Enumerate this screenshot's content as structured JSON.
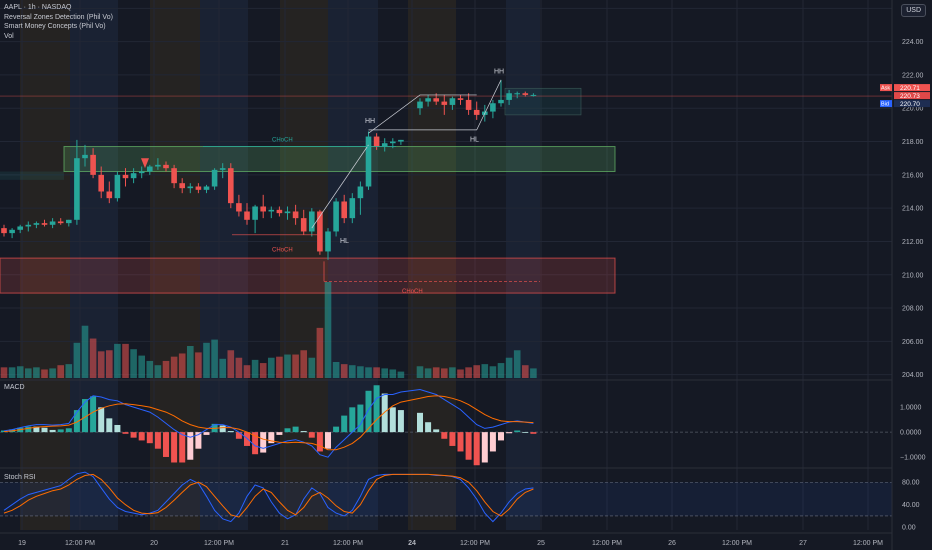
{
  "legend": {
    "symbol": "AAPL · 1h · NASDAQ",
    "indicator1": "Reversal Zones Detection (Phil Vo)",
    "indicator2": "Smart Money Concepts (Phil Vo)",
    "indicator3": "Vol"
  },
  "currency_button": "USD",
  "panes": {
    "macd": "MACD",
    "stoch": "Stoch RSI"
  },
  "colors": {
    "bg": "#151924",
    "up": "#26a69a",
    "down": "#ef5350",
    "band_orange": "#2b2722",
    "band_blue": "#1c2538",
    "supply_zone": "#ef5350",
    "demand_zone": "#66bb6a",
    "macd_line": "#2962ff",
    "signal_line": "#ff6d00"
  },
  "chart_data": [
    {
      "type": "candlestick",
      "title": "AAPL · 1h · NASDAQ",
      "x_ticks": [
        "19",
        "12:00 PM",
        "20",
        "12:00 PM",
        "21",
        "12:00 PM",
        "24",
        "12:00 PM",
        "25",
        "12:00 PM",
        "26",
        "12:00 PM",
        "27",
        "12:00 PM"
      ],
      "y_ticks": [
        "226.00",
        "224.00",
        "222.00",
        "220.00",
        "218.00",
        "216.00",
        "214.00",
        "212.00",
        "210.00",
        "208.00",
        "206.00",
        "204.00"
      ],
      "ylim": [
        203.8,
        226.5
      ],
      "ohlc": [
        [
          212.8,
          213.0,
          212.3,
          212.5
        ],
        [
          212.5,
          212.8,
          212.2,
          212.7
        ],
        [
          212.7,
          213.0,
          212.5,
          212.9
        ],
        [
          212.9,
          213.2,
          212.6,
          213.0
        ],
        [
          213.0,
          213.2,
          212.8,
          213.1
        ],
        [
          213.1,
          213.3,
          212.9,
          213.0
        ],
        [
          213.0,
          213.4,
          212.8,
          213.2
        ],
        [
          213.2,
          213.4,
          213.0,
          213.1
        ],
        [
          213.1,
          213.3,
          212.9,
          213.3
        ],
        [
          213.3,
          218.1,
          213.0,
          217.0
        ],
        [
          217.0,
          217.8,
          216.5,
          217.2
        ],
        [
          217.2,
          217.6,
          215.8,
          216.0
        ],
        [
          216.0,
          216.5,
          214.6,
          215.0
        ],
        [
          215.0,
          215.6,
          214.3,
          214.6
        ],
        [
          214.6,
          216.2,
          214.4,
          216.0
        ],
        [
          216.0,
          216.4,
          215.3,
          215.8
        ],
        [
          215.8,
          216.4,
          215.5,
          216.1
        ],
        [
          216.1,
          216.5,
          215.8,
          216.2
        ],
        [
          216.2,
          216.6,
          216.0,
          216.5
        ],
        [
          216.5,
          217.0,
          216.3,
          216.6
        ],
        [
          216.6,
          216.8,
          216.2,
          216.4
        ],
        [
          216.4,
          216.6,
          215.2,
          215.5
        ],
        [
          215.5,
          215.8,
          214.9,
          215.2
        ],
        [
          215.2,
          215.5,
          214.9,
          215.3
        ],
        [
          215.3,
          215.5,
          214.9,
          215.1
        ],
        [
          215.1,
          215.4,
          214.9,
          215.3
        ],
        [
          215.3,
          216.4,
          215.1,
          216.3
        ],
        [
          216.3,
          216.7,
          215.8,
          216.4
        ],
        [
          216.4,
          216.7,
          214.0,
          214.3
        ],
        [
          214.3,
          214.8,
          213.5,
          213.8
        ],
        [
          213.8,
          214.3,
          213.0,
          213.3
        ],
        [
          213.3,
          214.2,
          212.5,
          214.1
        ],
        [
          214.1,
          214.8,
          213.4,
          213.8
        ],
        [
          213.8,
          214.1,
          213.4,
          213.9
        ],
        [
          213.9,
          214.1,
          213.5,
          213.7
        ],
        [
          213.7,
          214.1,
          213.3,
          213.8
        ],
        [
          213.8,
          214.2,
          213.0,
          213.4
        ],
        [
          213.4,
          213.9,
          212.4,
          212.6
        ],
        [
          212.6,
          214.0,
          212.3,
          213.8
        ],
        [
          213.8,
          213.9,
          211.2,
          211.4
        ],
        [
          211.4,
          212.8,
          210.9,
          212.6
        ],
        [
          212.6,
          214.6,
          212.3,
          214.4
        ],
        [
          214.4,
          214.8,
          213.1,
          213.4
        ],
        [
          213.4,
          214.9,
          213.1,
          214.6
        ],
        [
          214.6,
          215.6,
          213.6,
          215.3
        ],
        [
          215.3,
          218.6,
          215.1,
          218.3
        ],
        [
          218.3,
          218.5,
          217.5,
          217.7
        ],
        [
          217.7,
          218.2,
          217.4,
          217.9
        ],
        [
          217.9,
          218.2,
          217.6,
          218.0
        ],
        [
          218.0,
          218.1,
          217.8,
          218.1
        ],
        [
          220.0,
          220.6,
          219.6,
          220.4
        ],
        [
          220.4,
          220.8,
          220.1,
          220.6
        ],
        [
          220.6,
          220.9,
          220.2,
          220.4
        ],
        [
          220.4,
          220.8,
          219.6,
          220.2
        ],
        [
          220.2,
          220.7,
          219.9,
          220.6
        ],
        [
          220.6,
          220.8,
          220.2,
          220.5
        ],
        [
          220.5,
          220.9,
          219.6,
          219.9
        ],
        [
          219.9,
          220.4,
          219.3,
          219.6
        ],
        [
          219.6,
          220.2,
          219.2,
          219.8
        ],
        [
          219.8,
          220.5,
          219.4,
          220.3
        ],
        [
          220.3,
          221.7,
          220.1,
          220.5
        ],
        [
          220.5,
          221.1,
          220.2,
          220.9
        ],
        [
          220.9,
          221.0,
          220.6,
          220.9
        ],
        [
          220.9,
          221.0,
          220.7,
          220.8
        ],
        [
          220.8,
          220.9,
          220.7,
          220.8
        ]
      ],
      "volume": [
        1.0,
        1.0,
        1.1,
        0.9,
        1.0,
        0.8,
        0.9,
        1.2,
        1.3,
        3.3,
        4.9,
        3.7,
        2.5,
        2.6,
        3.2,
        3.2,
        2.7,
        2.1,
        1.6,
        1.2,
        1.6,
        2.0,
        2.3,
        3.0,
        2.4,
        3.3,
        3.6,
        1.8,
        2.6,
        1.9,
        1.2,
        1.7,
        1.4,
        1.9,
        2.0,
        2.2,
        2.2,
        2.6,
        1.9,
        4.7,
        9.0,
        1.5,
        1.3,
        1.2,
        1.1,
        1.0,
        1.0,
        0.9,
        0.8,
        0.6,
        1.1,
        0.9,
        1.0,
        0.9,
        1.0,
        0.8,
        1.0,
        1.2,
        1.3,
        1.1,
        1.4,
        1.9,
        2.6,
        1.2,
        0.9
      ],
      "labels": [
        "HH",
        "HL",
        "HH",
        "HL",
        "CHoCH",
        "CHoCH",
        "CHoCH"
      ],
      "price_tags": {
        "ask_label": "Ask",
        "ask": "220.71",
        "mid": "220.73",
        "bid_label": "Bid",
        "bid": "220.70"
      }
    },
    {
      "type": "line",
      "title": "MACD",
      "y_ticks": [
        "1.0000",
        "0.0000",
        "−1.0000"
      ],
      "ylim": [
        -1.35,
        2.0
      ],
      "series": [
        {
          "values": [
            0.05,
            0.1,
            0.18,
            0.25,
            0.3,
            0.3,
            0.28,
            0.3,
            0.35,
            0.8,
            1.2,
            1.45,
            1.4,
            1.3,
            1.25,
            1.1,
            1.0,
            0.9,
            0.8,
            0.6,
            0.35,
            0.1,
            -0.1,
            -0.2,
            -0.1,
            0.1,
            0.3,
            0.3,
            0.2,
            0.0,
            -0.25,
            -0.55,
            -0.65,
            -0.55,
            -0.45,
            -0.35,
            -0.3,
            -0.4,
            -0.55,
            -0.9,
            -1.0,
            -0.6,
            -0.3,
            0.0,
            0.3,
            0.9,
            1.35,
            1.5,
            1.5,
            1.6,
            1.7,
            1.6,
            1.5,
            1.3,
            1.1,
            0.9,
            0.6,
            0.3,
            0.15,
            0.2,
            0.3,
            0.4,
            0.45,
            0.4,
            0.35
          ]
        },
        {
          "values": [
            0.02,
            0.05,
            0.1,
            0.15,
            0.2,
            0.22,
            0.24,
            0.25,
            0.28,
            0.4,
            0.6,
            0.8,
            0.95,
            1.05,
            1.12,
            1.13,
            1.1,
            1.05,
            1.0,
            0.9,
            0.8,
            0.65,
            0.45,
            0.3,
            0.2,
            0.15,
            0.15,
            0.18,
            0.18,
            0.12,
            0.0,
            -0.15,
            -0.28,
            -0.35,
            -0.4,
            -0.42,
            -0.4,
            -0.42,
            -0.45,
            -0.55,
            -0.7,
            -0.7,
            -0.6,
            -0.45,
            -0.2,
            0.15,
            0.5,
            0.8,
            1.05,
            1.2,
            1.35,
            1.42,
            1.45,
            1.42,
            1.35,
            1.25,
            1.1,
            0.9,
            0.7,
            0.55,
            0.45,
            0.42,
            0.42,
            0.4,
            0.38
          ]
        }
      ]
    },
    {
      "type": "line",
      "title": "Stoch RSI",
      "y_ticks": [
        "80.00",
        "40.00",
        "0.00"
      ],
      "ylim": [
        -5,
        100
      ],
      "series": [
        {
          "values": [
            30,
            40,
            50,
            58,
            62,
            66,
            70,
            74,
            85,
            95,
            98,
            90,
            70,
            50,
            35,
            28,
            25,
            22,
            25,
            30,
            45,
            60,
            75,
            85,
            78,
            55,
            30,
            15,
            10,
            25,
            55,
            75,
            70,
            45,
            25,
            15,
            22,
            50,
            70,
            60,
            35,
            25,
            20,
            30,
            55,
            85,
            92,
            94,
            94,
            94,
            94,
            94,
            92,
            92,
            90,
            85,
            70,
            50,
            25,
            10,
            25,
            45,
            60,
            68,
            70
          ]
        },
        {
          "values": [
            25,
            30,
            38,
            48,
            55,
            60,
            65,
            68,
            75,
            85,
            92,
            94,
            85,
            70,
            52,
            40,
            30,
            25,
            24,
            26,
            35,
            48,
            62,
            75,
            80,
            72,
            55,
            38,
            22,
            18,
            35,
            55,
            68,
            62,
            45,
            30,
            22,
            35,
            55,
            62,
            52,
            38,
            28,
            25,
            40,
            65,
            85,
            92,
            94,
            94,
            94,
            94,
            93,
            92,
            91,
            88,
            80,
            65,
            45,
            28,
            20,
            32,
            50,
            62,
            68
          ]
        }
      ]
    }
  ]
}
